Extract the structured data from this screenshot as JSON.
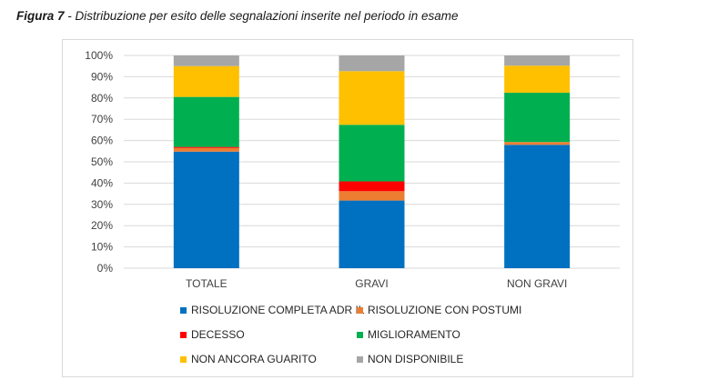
{
  "caption": {
    "figure_label": "Figura 7",
    "text": " - Distribuzione per esito delle segnalazioni inserite nel periodo in esame"
  },
  "chart_data": {
    "type": "bar",
    "stacked": true,
    "categories": [
      "TOTALE",
      "GRAVI",
      "NON GRAVI"
    ],
    "ylim": [
      0,
      100
    ],
    "yticks": [
      "0%",
      "10%",
      "20%",
      "30%",
      "40%",
      "50%",
      "60%",
      "70%",
      "80%",
      "90%",
      "100%"
    ],
    "grid": true,
    "legend_position": "bottom",
    "series": [
      {
        "name": "RISOLUZIONE COMPLETA ADR IL",
        "color": "#0070c0",
        "values": [
          54.8,
          31.8,
          58.0
        ]
      },
      {
        "name": "RISOLUZIONE CON POSTUMI",
        "color": "#ed7d31",
        "values": [
          1.7,
          4.4,
          1.3
        ]
      },
      {
        "name": "DECESSO",
        "color": "#ff0000",
        "values": [
          0.5,
          4.6,
          0.0
        ]
      },
      {
        "name": "MIGLIORAMENTO",
        "color": "#00b050",
        "values": [
          23.5,
          26.6,
          23.2
        ]
      },
      {
        "name": "NON ANCORA GUARITO",
        "color": "#ffc000",
        "values": [
          14.5,
          25.2,
          12.7
        ]
      },
      {
        "name": "NON DISPONIBILE",
        "color": "#a6a6a6",
        "values": [
          5.0,
          7.4,
          4.8
        ]
      }
    ]
  }
}
